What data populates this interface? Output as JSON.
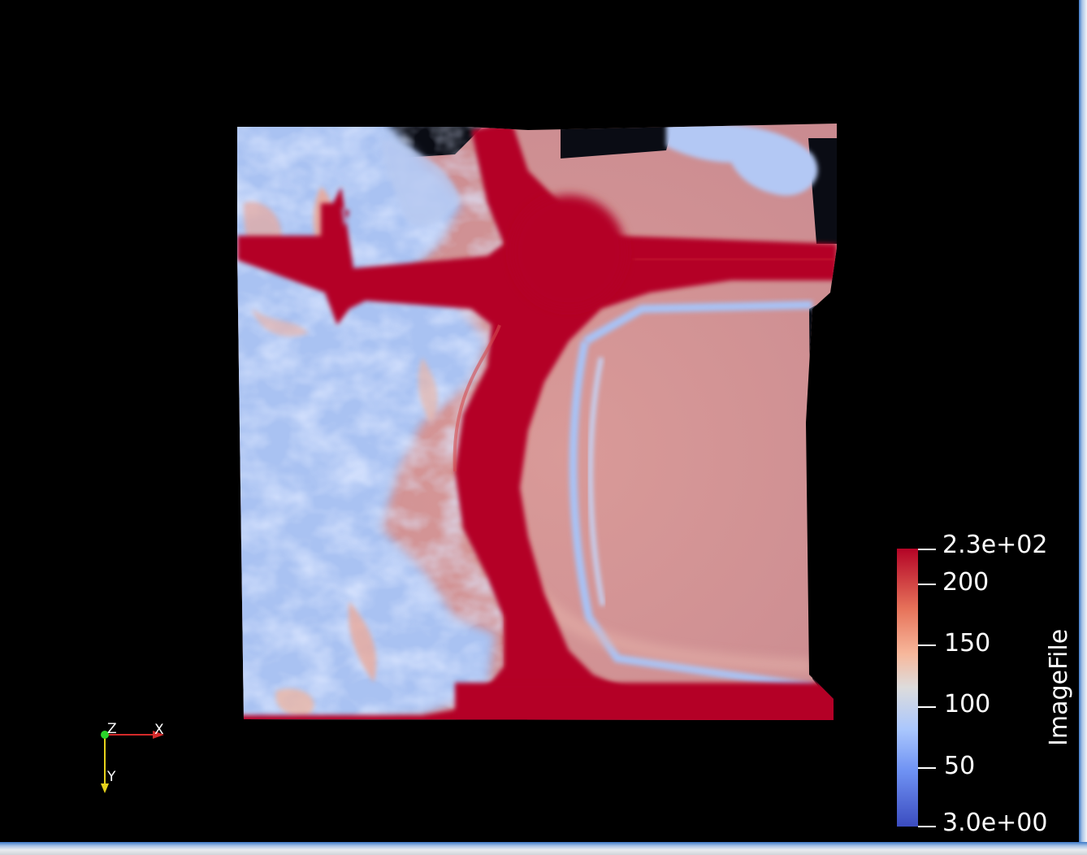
{
  "scalar_bar": {
    "title": "ImageFile",
    "ticks": [
      {
        "label": "2.3e+02",
        "value": 230
      },
      {
        "label": "200",
        "value": 200
      },
      {
        "label": "150",
        "value": 150
      },
      {
        "label": "100",
        "value": 100
      },
      {
        "label": "50",
        "value": 50
      },
      {
        "label": "3.0e+00",
        "value": 3
      }
    ],
    "range": [
      3,
      230
    ],
    "colormap": "Cool to Warm"
  },
  "orientation_axes": {
    "x_label": "X",
    "y_label": "Y",
    "z_label": "Z",
    "x_color": "#d42a2a",
    "y_color": "#e6d21c",
    "z_color": "#2ad42a"
  },
  "colors": {
    "background": "#000000",
    "high": "#b40426",
    "mid_high": "#cf8a8e",
    "low": "#aac7fd"
  }
}
